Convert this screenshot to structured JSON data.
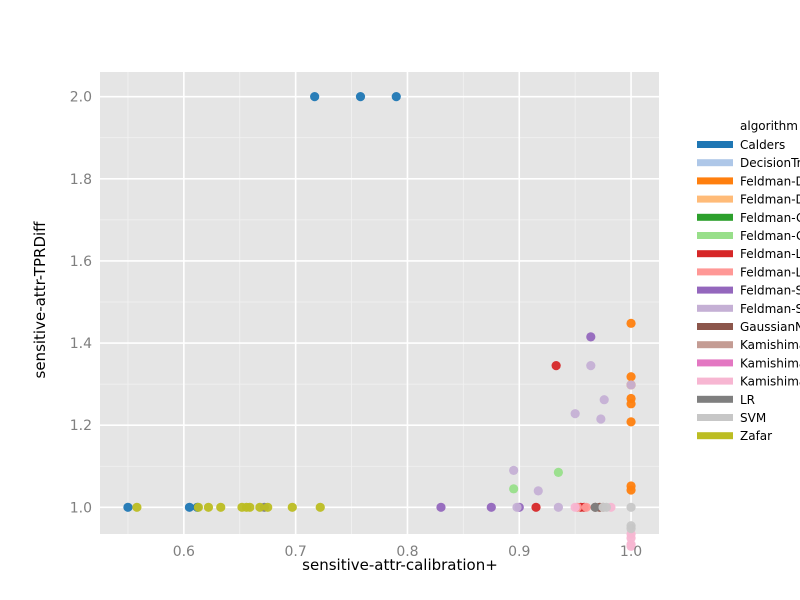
{
  "chart_data": {
    "type": "scatter",
    "xlabel": "sensitive-attr-calibration+",
    "ylabel": "sensitive-attr-TPRDiff",
    "xlim": [
      0.525,
      1.025
    ],
    "ylim": [
      0.935,
      2.06
    ],
    "x_ticks": [
      0.6,
      0.7,
      0.8,
      0.9,
      1.0
    ],
    "x_tick_labels": [
      "0.6",
      "0.7",
      "0.8",
      "0.9",
      "1.0"
    ],
    "y_ticks": [
      1.0,
      1.2,
      1.4,
      1.6,
      1.8,
      2.0
    ],
    "y_tick_labels": [
      "1.0",
      "1.2",
      "1.4",
      "1.6",
      "1.8",
      "2.0"
    ],
    "grid": true,
    "legend": {
      "title": "algorithm",
      "placement": "right"
    },
    "series": [
      {
        "name": "Calders",
        "color": "#1f77b4",
        "points": [
          [
            0.55,
            1.0
          ],
          [
            0.605,
            1.0
          ],
          [
            0.612,
            1.0
          ],
          [
            0.717,
            2.0
          ],
          [
            0.758,
            2.0
          ],
          [
            0.79,
            2.0
          ]
        ]
      },
      {
        "name": "DecisionTree",
        "color": "#aec7e8",
        "points": []
      },
      {
        "name": "Feldman-DecisionTree",
        "color": "#ff7f0e",
        "points": [
          [
            1.0,
            1.448
          ],
          [
            1.0,
            1.318
          ],
          [
            1.0,
            1.298
          ],
          [
            1.0,
            1.265
          ],
          [
            1.0,
            1.252
          ],
          [
            1.0,
            1.208
          ],
          [
            1.0,
            1.052
          ],
          [
            1.0,
            1.042
          ]
        ]
      },
      {
        "name": "Feldman-DecisionTree-numerical",
        "color": "#ffbb78",
        "points": []
      },
      {
        "name": "Feldman-GaussianNB",
        "color": "#2ca02c",
        "points": []
      },
      {
        "name": "Feldman-GaussianNB-numerical",
        "color": "#98df8a",
        "points": [
          [
            0.895,
            1.045
          ],
          [
            0.935,
            1.085
          ]
        ]
      },
      {
        "name": "Feldman-LR",
        "color": "#d62728",
        "points": [
          [
            0.933,
            1.345
          ],
          [
            0.915,
            1.0
          ],
          [
            0.955,
            1.0
          ],
          [
            0.958,
            1.0
          ]
        ]
      },
      {
        "name": "Feldman-LR-numerical",
        "color": "#ff9896",
        "points": [
          [
            0.952,
            1.0
          ],
          [
            0.96,
            1.0
          ]
        ]
      },
      {
        "name": "Feldman-SVM",
        "color": "#9467bd",
        "points": [
          [
            0.83,
            1.0
          ],
          [
            0.875,
            1.0
          ],
          [
            0.9,
            1.0
          ],
          [
            0.964,
            1.415
          ]
        ]
      },
      {
        "name": "Feldman-SVM-numerical",
        "color": "#c5b0d5",
        "points": [
          [
            0.895,
            1.09
          ],
          [
            0.917,
            1.04
          ],
          [
            0.935,
            1.0
          ],
          [
            0.95,
            1.228
          ],
          [
            0.964,
            1.345
          ],
          [
            0.973,
            1.215
          ],
          [
            0.976,
            1.262
          ],
          [
            1.0,
            1.298
          ],
          [
            0.898,
            1.0
          ]
        ]
      },
      {
        "name": "GaussianNB",
        "color": "#8c564b",
        "points": [
          [
            0.968,
            1.0
          ],
          [
            0.972,
            1.0
          ]
        ]
      },
      {
        "name": "Kamishima",
        "color": "#c49c94",
        "points": [
          [
            0.975,
            1.0
          ]
        ]
      },
      {
        "name": "Kamishima-accuracy",
        "color": "#e377c2",
        "points": []
      },
      {
        "name": "Kamishima-calibration",
        "color": "#f7b6d2",
        "points": [
          [
            0.95,
            1.0
          ],
          [
            0.982,
            1.0
          ],
          [
            1.0,
            0.935
          ],
          [
            1.0,
            0.925
          ],
          [
            1.0,
            0.91
          ],
          [
            1.0,
            0.905
          ]
        ]
      },
      {
        "name": "LR",
        "color": "#7f7f7f",
        "points": [
          [
            0.672,
            1.0
          ],
          [
            0.968,
            1.0
          ]
        ]
      },
      {
        "name": "SVM",
        "color": "#c7c7c7",
        "points": [
          [
            1.0,
            1.0
          ],
          [
            1.0,
            0.955
          ],
          [
            1.0,
            0.948
          ],
          [
            0.975,
            1.0
          ],
          [
            0.978,
            1.0
          ]
        ]
      },
      {
        "name": "Zafar",
        "color": "#bcbd22",
        "points": [
          [
            0.558,
            1.0
          ],
          [
            0.613,
            1.0
          ],
          [
            0.622,
            1.0
          ],
          [
            0.633,
            1.0
          ],
          [
            0.652,
            1.0
          ],
          [
            0.656,
            1.0
          ],
          [
            0.659,
            1.0
          ],
          [
            0.668,
            1.0
          ],
          [
            0.675,
            1.0
          ],
          [
            0.697,
            1.0
          ],
          [
            0.722,
            1.0
          ]
        ]
      }
    ]
  }
}
